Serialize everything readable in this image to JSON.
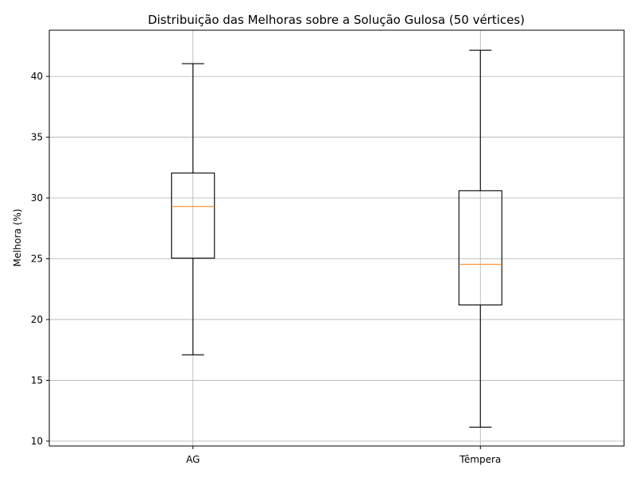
{
  "chart_data": {
    "type": "boxplot",
    "title": "Distribuição das Melhoras sobre a Solução Gulosa (50 vértices)",
    "xlabel": "",
    "ylabel": "Melhora (%)",
    "ylim": [
      9.6,
      43.8
    ],
    "yticks": [
      10,
      15,
      20,
      25,
      30,
      35,
      40
    ],
    "grid": true,
    "categories": [
      "AG",
      "Têmpera"
    ],
    "boxes": [
      {
        "name": "AG",
        "whisker_low": 17.1,
        "q1": 25.05,
        "median": 29.3,
        "q3": 32.05,
        "whisker_high": 41.05
      },
      {
        "name": "Têmpera",
        "whisker_low": 11.15,
        "q1": 21.2,
        "median": 24.55,
        "q3": 30.6,
        "whisker_high": 42.15
      }
    ],
    "colors": {
      "box": "#000000",
      "median": "#ff7f0e",
      "grid": "#b0b0b0"
    }
  }
}
